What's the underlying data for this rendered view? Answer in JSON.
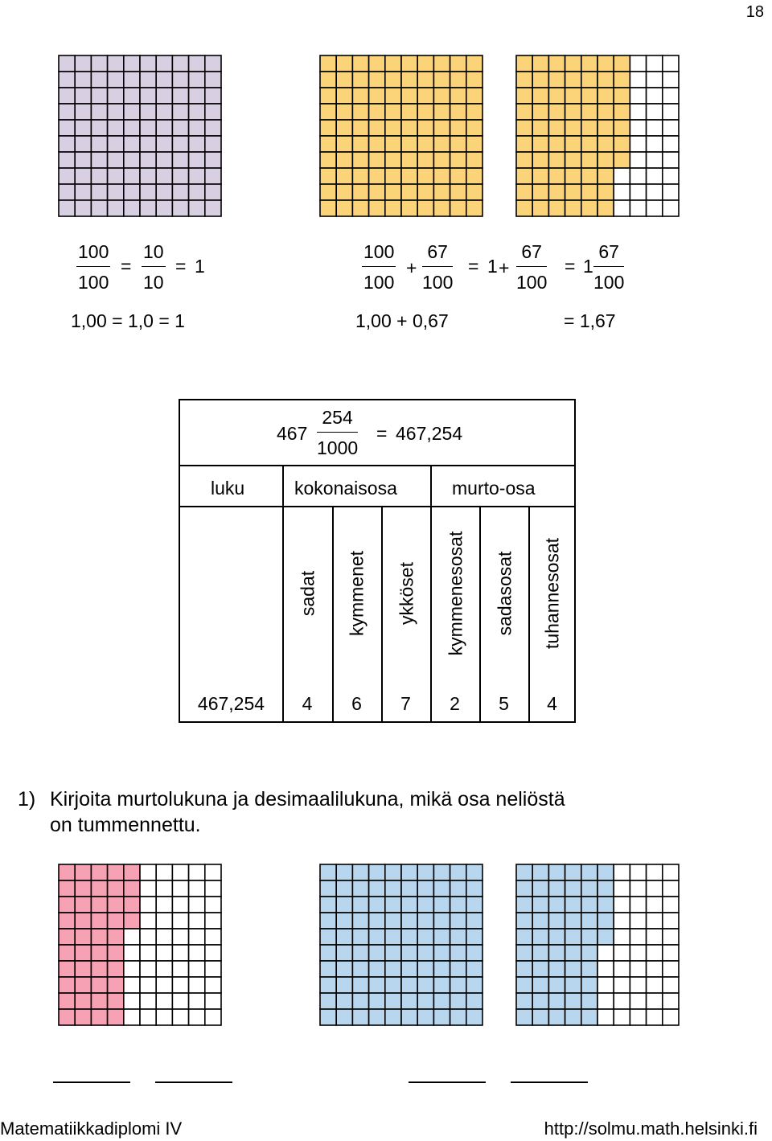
{
  "page_number": "18",
  "colors": {
    "purple": "#d9cfe2",
    "yellow": "#fbd47a",
    "pink": "#f7a1b5",
    "blue": "#b8d6ee",
    "white": "#ffffff",
    "grid_line": "#000000"
  },
  "grids": [
    {
      "name": "grid-one-whole-purple",
      "color_key": "purple",
      "shaded_cells": 100
    },
    {
      "name": "grid-hundred-yellow",
      "color_key": "yellow",
      "shaded_cells": 100
    },
    {
      "name": "grid-sixty-seven-yellow",
      "color_key": "yellow",
      "shaded_cells": 67
    },
    {
      "name": "grid-exercise-pink",
      "color_key": "pink",
      "shaded_cells": 44
    },
    {
      "name": "grid-exercise-blue-full",
      "color_key": "blue",
      "shaded_cells": 100
    },
    {
      "name": "grid-exercise-blue-partial",
      "color_key": "blue",
      "shaded_cells": 55
    }
  ],
  "examples": {
    "left": {
      "frac1_num": "100",
      "frac1_den": "100",
      "eq1": "=",
      "frac2_num": "10",
      "frac2_den": "10",
      "eq2": "=",
      "result": "1",
      "decimal_line": "1,00 = 1,0 = 1"
    },
    "right": {
      "frac1_num": "100",
      "frac1_den": "100",
      "plus1": "+",
      "frac2_num": "67",
      "frac2_den": "100",
      "eq1": "=",
      "mixed_whole": "1",
      "plus2": "+",
      "frac3_num": "67",
      "frac3_den": "100",
      "eq2": "=",
      "mixed_whole2": "1",
      "frac4_num": "67",
      "frac4_den": "100",
      "decimal_sum": "1,00 + 0,67",
      "decimal_result": "= 1,67"
    }
  },
  "place_table": {
    "formula": {
      "whole": "467",
      "num": "254",
      "den": "1000",
      "eq": "=",
      "value": "467,254"
    },
    "headers": {
      "number": "luku",
      "integer_part": "kokonaisosa",
      "fraction_part": "murto-osa"
    },
    "columns": [
      "sadat",
      "kymmenet",
      "ykköset",
      "kymmenesosat",
      "sadasosat",
      "tuhannesosat"
    ],
    "row_label": "467,254",
    "digits": [
      "4",
      "6",
      "7",
      "2",
      "5",
      "4"
    ]
  },
  "task": {
    "number": "1)",
    "text_line1": "Kirjoita murtolukuna ja desimaalilukuna, mikä osa neliöstä",
    "text_line2": "on tummennettu."
  },
  "footer": {
    "left": "Matematiikkadiplomi IV",
    "right": "http://solmu.math.helsinki.fi"
  }
}
